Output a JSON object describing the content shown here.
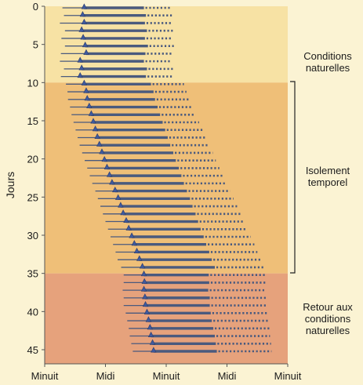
{
  "chart_data": {
    "type": "scatter",
    "ylabel": "Jours",
    "xlabel": "",
    "y_ticks": [
      "0",
      "5",
      "10",
      "15",
      "20",
      "25",
      "30",
      "35",
      "40",
      "45"
    ],
    "x_ticks": [
      "Minuit",
      "Midi",
      "Minuit",
      "Midi",
      "Minuit"
    ],
    "x_range_hours": [
      0,
      48
    ],
    "y_range_days": [
      0,
      46
    ],
    "y_axis_inverted": true,
    "grid": false,
    "phases": [
      {
        "label": "Conditions naturelles",
        "from_day": 0,
        "to_day": 10,
        "color": "#f7e2a4"
      },
      {
        "label": "Isolement temporel",
        "from_day": 10,
        "to_day": 35,
        "color": "#efbf78"
      },
      {
        "label": "Retour aux conditions naturelles",
        "from_day": 35,
        "to_day": 46,
        "color": "#e6a27c"
      }
    ],
    "series": [
      {
        "marker": "triangle",
        "color": "#4a5a7e",
        "unit": "hours",
        "wake_onset": [
          7.8,
          7.5,
          7.8,
          7.3,
          7.6,
          8.0,
          8.2,
          7.0,
          7.3,
          7.0,
          7.8,
          8.2,
          8.4,
          8.8,
          9.2,
          9.6,
          10.0,
          10.4,
          10.8,
          11.3,
          11.8,
          12.3,
          12.8,
          13.3,
          13.9,
          14.5,
          15.0,
          15.5,
          16.1,
          16.6,
          17.2,
          17.7,
          18.2,
          18.7,
          19.3,
          19.6,
          19.7,
          19.6,
          19.8,
          19.9,
          20.2,
          20.5,
          20.8,
          21.0,
          21.3,
          21.5
        ],
        "sleep_start": [
          3.5,
          3.8,
          3.0,
          4.0,
          3.3,
          4.0,
          3.2,
          3.0,
          3.8,
          3.2,
          4.2,
          4.5,
          4.6,
          5.0,
          5.3,
          5.7,
          6.1,
          6.5,
          6.9,
          7.4,
          7.9,
          8.4,
          8.9,
          9.4,
          10.0,
          10.5,
          11.0,
          11.5,
          12.0,
          12.5,
          13.0,
          13.5,
          14.0,
          14.4,
          15.1,
          15.6,
          15.6,
          15.4,
          15.6,
          15.6,
          16.0,
          16.3,
          16.6,
          16.8,
          17.1,
          17.4
        ],
        "wake_end": [
          19.6,
          20.0,
          19.8,
          20.2,
          19.8,
          20.4,
          19.9,
          19.6,
          20.2,
          20.0,
          21.0,
          21.5,
          21.8,
          22.3,
          22.8,
          23.3,
          23.8,
          24.3,
          24.8,
          25.4,
          25.9,
          26.5,
          27.0,
          27.5,
          28.1,
          28.7,
          29.2,
          29.8,
          30.3,
          30.8,
          31.4,
          31.9,
          32.5,
          33.0,
          33.6,
          32.4,
          32.5,
          32.3,
          32.6,
          32.6,
          32.8,
          33.0,
          33.3,
          33.6,
          33.8,
          34.0
        ],
        "end_of_trace": [
          25.0,
          25.2,
          25.0,
          25.3,
          25.1,
          25.5,
          25.2,
          25.0,
          25.4,
          25.2,
          27.5,
          28.0,
          28.5,
          29.2,
          29.8,
          30.5,
          31.2,
          31.8,
          32.5,
          33.2,
          33.8,
          34.5,
          35.2,
          35.9,
          36.6,
          37.3,
          38.0,
          38.7,
          39.3,
          40.0,
          40.7,
          41.4,
          42.0,
          42.7,
          43.3,
          43.6,
          43.7,
          43.6,
          43.8,
          43.8,
          44.0,
          44.2,
          44.4,
          44.5,
          44.7,
          44.8
        ]
      }
    ]
  }
}
